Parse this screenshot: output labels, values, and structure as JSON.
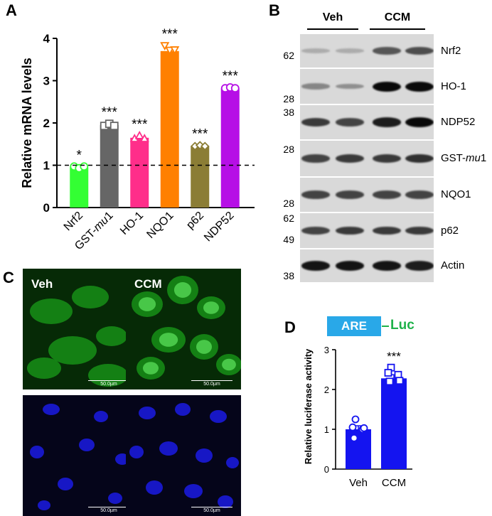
{
  "panels": {
    "A": "A",
    "B": "B",
    "C": "C",
    "D": "D"
  },
  "chart_data": [
    {
      "panel": "A",
      "type": "bar",
      "categories": [
        "Nrf2",
        "GST-mu1",
        "HO-1",
        "NQO1",
        "p62",
        "NDP52"
      ],
      "values": [
        0.95,
        1.95,
        1.65,
        3.7,
        1.45,
        2.82
      ],
      "significance": [
        "*",
        "***",
        "***",
        "***",
        "***",
        "***"
      ],
      "ylabel": "Relative mRNA levels",
      "ylim": [
        0,
        4
      ],
      "yticks": [
        0,
        1,
        2,
        3,
        4
      ],
      "reference_line": 1,
      "colors": [
        "#33ff33",
        "#666666",
        "#ff2e8a",
        "#ff8000",
        "#8b7d35",
        "#b60fe6"
      ],
      "points": [
        [
          0.97,
          0.93,
          0.97
        ],
        [
          1.93,
          1.98,
          1.93
        ],
        [
          1.63,
          1.7,
          1.63
        ],
        [
          3.83,
          3.72,
          3.73
        ],
        [
          1.45,
          1.47,
          1.45
        ],
        [
          2.82,
          2.84,
          2.82
        ]
      ],
      "markers": [
        "circle",
        "square",
        "triangle",
        "triangle-down",
        "diamond",
        "circle"
      ]
    },
    {
      "panel": "D",
      "type": "bar",
      "categories": [
        "Veh",
        "CCM"
      ],
      "values": [
        1.0,
        2.28
      ],
      "errors": [
        0.09,
        0.09
      ],
      "significance": [
        "",
        "***"
      ],
      "ylabel": "Relative luciferase activity",
      "ylim": [
        0,
        3
      ],
      "yticks": [
        0,
        1,
        2,
        3
      ],
      "colors": [
        "#1414f0",
        "#1414f0"
      ],
      "points": [
        [
          1.25,
          1.05,
          1.0,
          1.03,
          0.78
        ],
        [
          2.55,
          2.42,
          2.37,
          2.22,
          2.2
        ]
      ]
    }
  ],
  "blot": {
    "groups": [
      "Veh",
      "CCM"
    ],
    "rows": [
      {
        "label": "Nrf2",
        "markers": [
          "62"
        ],
        "intensity": [
          0.15,
          0.15,
          0.6,
          0.65
        ]
      },
      {
        "label": "HO-1",
        "markers": [
          "28"
        ],
        "intensity": [
          0.35,
          0.3,
          1.0,
          1.0
        ]
      },
      {
        "label": "NDP52",
        "markers": [
          "38"
        ],
        "intensity": [
          0.75,
          0.7,
          0.9,
          1.0
        ]
      },
      {
        "label": "GST-mu1",
        "markers": [
          "28"
        ],
        "intensity": [
          0.7,
          0.75,
          0.75,
          0.8
        ]
      },
      {
        "label": "NQO1",
        "markers": [
          "28"
        ],
        "intensity": [
          0.7,
          0.7,
          0.7,
          0.7
        ]
      },
      {
        "label": "p62",
        "markers": [
          "62",
          "49"
        ],
        "intensity": [
          0.7,
          0.75,
          0.75,
          0.75
        ]
      },
      {
        "label": "Actin",
        "markers": [
          "38"
        ],
        "intensity": [
          0.95,
          0.95,
          0.95,
          0.9
        ]
      }
    ]
  },
  "micro": {
    "conditions": [
      "Veh",
      "CCM"
    ],
    "scalebar": "50.0µm",
    "green": "#1a9e1a",
    "blue": "#1a1ad8"
  },
  "construct": {
    "box": "ARE",
    "gene": "Luc",
    "box_color": "#29a8e8",
    "gene_color": "#1fb24a"
  }
}
